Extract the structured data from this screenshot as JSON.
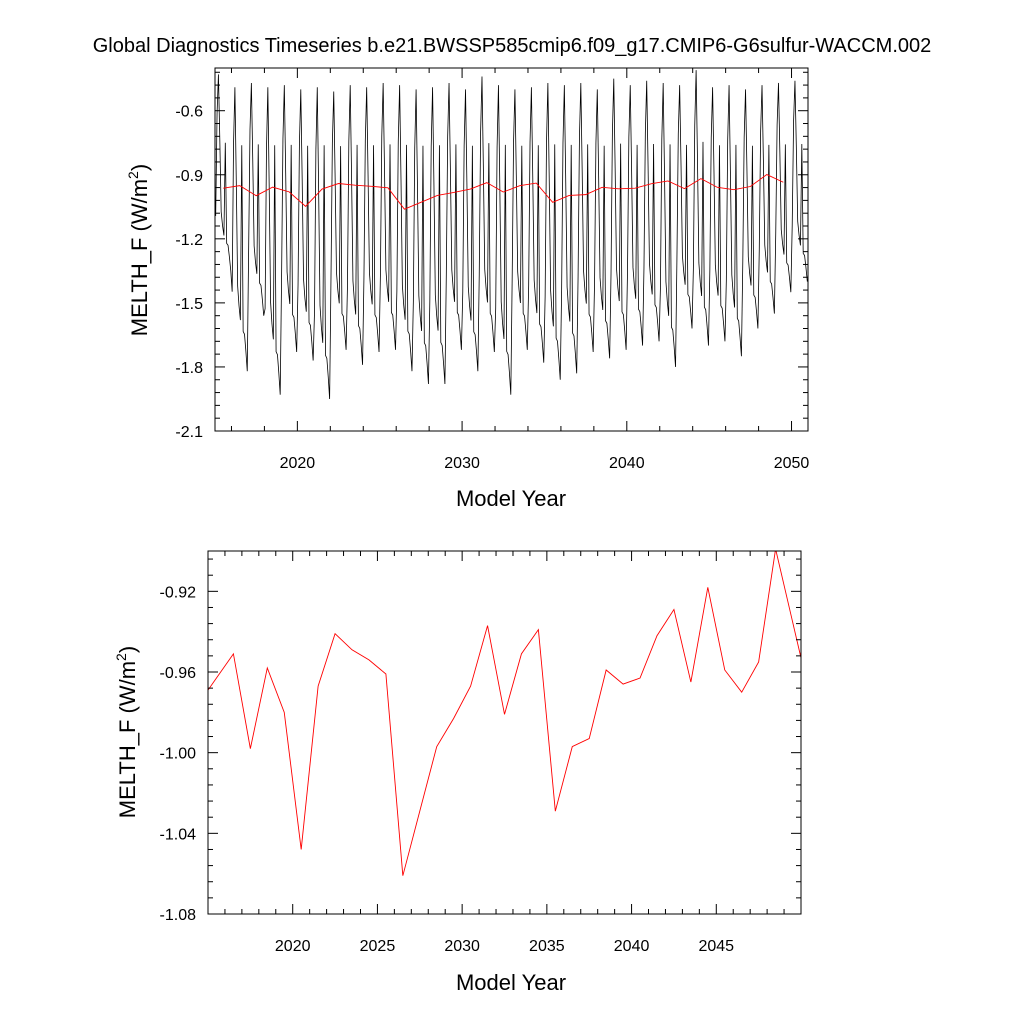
{
  "title": "Global Diagnostics Timeseries b.e21.BWSSP585cmip6.f09_g17.CMIP6-G6sulfur-WACCM.002",
  "chart_data": [
    {
      "type": "line",
      "xlabel": "Model Year",
      "ylabel_main": "MELTH_F (W/m",
      "ylabel_sup": "2",
      "ylabel_tail": ")",
      "xlim": [
        2015,
        2051
      ],
      "ylim": [
        -2.1,
        -0.4
      ],
      "xticks": [
        2020,
        2030,
        2040,
        2050
      ],
      "yticks": [
        -2.1,
        -1.8,
        -1.5,
        -1.2,
        -0.9,
        -0.6
      ],
      "ytick_labels": [
        "-2.1",
        "-1.8",
        "-1.5",
        "-1.2",
        "-0.9",
        "-0.6"
      ],
      "monthly_series": {
        "color": "#000000",
        "start_year": 2015,
        "n_months": 432,
        "annual_max": [
          -0.43,
          -0.49,
          -0.47,
          -0.49,
          -0.48,
          -0.5,
          -0.49,
          -0.51,
          -0.48,
          -0.49,
          -0.47,
          -0.48,
          -0.5,
          -0.49,
          -0.47,
          -0.5,
          -0.44,
          -0.48,
          -0.5,
          -0.49,
          -0.47,
          -0.48,
          -0.47,
          -0.5,
          -0.45,
          -0.48,
          -0.46,
          -0.47,
          -0.48,
          -0.41,
          -0.49,
          -0.48,
          -0.5,
          -0.48,
          -0.47,
          -0.46
        ],
        "annual_min": [
          -1.35,
          -1.82,
          -1.56,
          -1.93,
          -1.73,
          -1.77,
          -1.95,
          -1.72,
          -1.79,
          -1.73,
          -1.72,
          -1.82,
          -1.88,
          -1.88,
          -1.72,
          -1.82,
          -1.73,
          -1.93,
          -1.72,
          -1.78,
          -1.86,
          -1.83,
          -1.73,
          -1.76,
          -1.72,
          -1.7,
          -1.68,
          -1.8,
          -1.62,
          -1.7,
          -1.68,
          -1.75,
          -1.62,
          -1.55,
          -1.45,
          -1.4
        ],
        "secondary_trough": -0.76
      },
      "annual_series": {
        "color": "#ff0000",
        "x": [
          2015.5,
          2016.5,
          2017.5,
          2018.5,
          2019.5,
          2020.5,
          2021.5,
          2022.5,
          2023.5,
          2024.5,
          2025.5,
          2026.5,
          2027.5,
          2028.5,
          2029.5,
          2030.5,
          2031.5,
          2032.5,
          2033.5,
          2034.5,
          2035.5,
          2036.5,
          2037.5,
          2038.5,
          2039.5,
          2040.5,
          2041.5,
          2042.5,
          2043.5,
          2044.5,
          2045.5,
          2046.5,
          2047.5,
          2048.5,
          2049.5
        ],
        "y": [
          -0.963,
          -0.951,
          -0.998,
          -0.958,
          -0.98,
          -1.048,
          -0.967,
          -0.941,
          -0.949,
          -0.954,
          -0.961,
          -1.061,
          -1.029,
          -0.997,
          -0.983,
          -0.967,
          -0.937,
          -0.981,
          -0.951,
          -0.939,
          -1.029,
          -0.997,
          -0.993,
          -0.959,
          -0.966,
          -0.963,
          -0.942,
          -0.929,
          -0.965,
          -0.918,
          -0.959,
          -0.97,
          -0.955,
          -0.899,
          -0.935
        ]
      }
    },
    {
      "type": "line",
      "xlabel": "Model Year",
      "ylabel_main": "MELTH_F (W/m",
      "ylabel_sup": "2",
      "ylabel_tail": ")",
      "xlim": [
        2015,
        2050
      ],
      "ylim": [
        -1.08,
        -0.9
      ],
      "xticks": [
        2020,
        2025,
        2030,
        2035,
        2040,
        2045
      ],
      "yticks": [
        -1.08,
        -1.04,
        -1.0,
        -0.96,
        -0.92
      ],
      "ytick_labels": [
        "-1.08",
        "-1.04",
        "-1.00",
        "-0.96",
        "-0.92"
      ],
      "series": [
        {
          "color": "#ff0000",
          "x": [
            2015.5,
            2016.5,
            2017.5,
            2018.5,
            2019.5,
            2020.5,
            2021.5,
            2022.5,
            2023.5,
            2024.5,
            2025.5,
            2026.5,
            2027.5,
            2028.5,
            2029.5,
            2030.5,
            2031.5,
            2032.5,
            2033.5,
            2034.5,
            2035.5,
            2036.5,
            2037.5,
            2038.5,
            2039.5,
            2040.5,
            2041.5,
            2042.5,
            2043.5,
            2044.5,
            2045.5,
            2046.5,
            2047.5,
            2048.5,
            2049.5
          ],
          "y": [
            -0.963,
            -0.951,
            -0.998,
            -0.958,
            -0.98,
            -1.048,
            -0.967,
            -0.941,
            -0.949,
            -0.954,
            -0.961,
            -1.061,
            -1.029,
            -0.997,
            -0.983,
            -0.967,
            -0.937,
            -0.981,
            -0.951,
            -0.939,
            -1.029,
            -0.997,
            -0.993,
            -0.959,
            -0.966,
            -0.963,
            -0.942,
            -0.929,
            -0.965,
            -0.918,
            -0.959,
            -0.97,
            -0.955,
            -0.899,
            -0.935
          ]
        }
      ]
    }
  ]
}
